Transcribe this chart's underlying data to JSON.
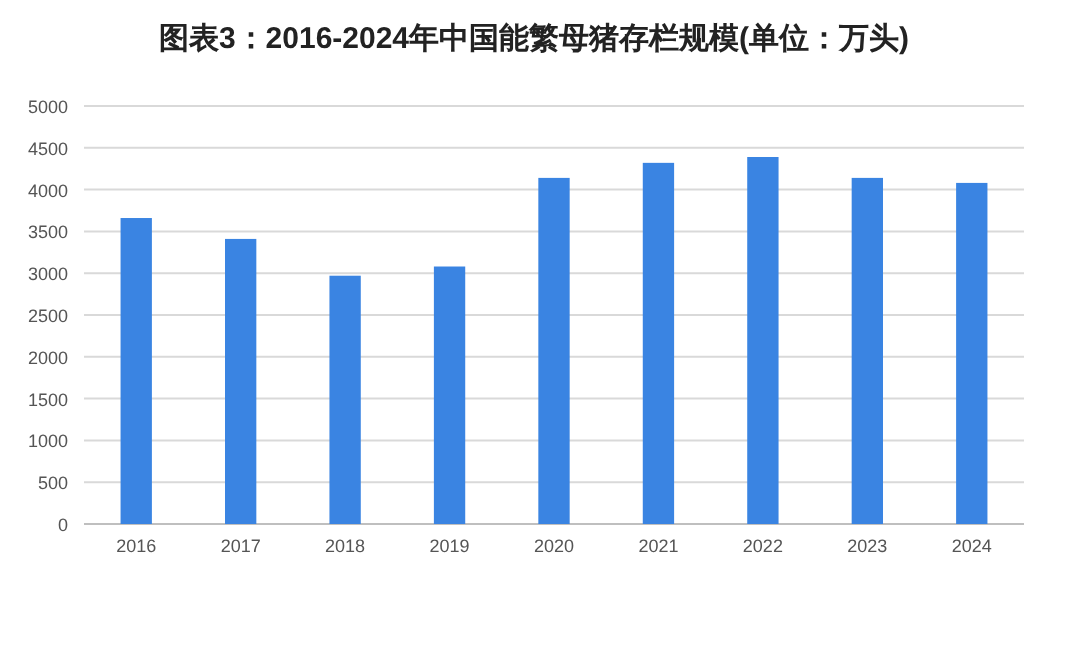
{
  "chart_data": {
    "type": "bar",
    "title": "图表3：2016-2024年中国能繁母猪存栏规模(单位：万头)",
    "categories": [
      "2016",
      "2017",
      "2018",
      "2019",
      "2020",
      "2021",
      "2022",
      "2023",
      "2024"
    ],
    "values": [
      3660,
      3410,
      2970,
      3080,
      4140,
      4320,
      4390,
      4140,
      4080
    ],
    "color": "#3a84e2",
    "ylim": [
      0,
      5000
    ],
    "yticks": [
      0,
      500,
      1000,
      1500,
      2000,
      2500,
      3000,
      3500,
      4000,
      4500,
      5000
    ],
    "grid": "y"
  }
}
